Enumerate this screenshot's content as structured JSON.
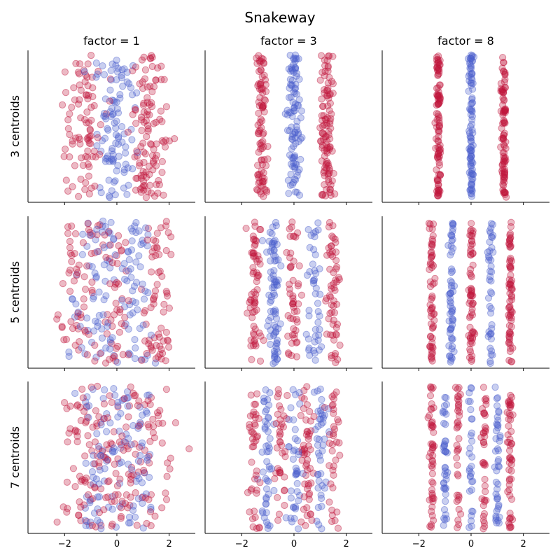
{
  "title": "Snakeway",
  "col_titles": [
    "factor = 1",
    "factor = 3",
    "factor = 8"
  ],
  "row_labels": [
    "3 centroids",
    "5 centroids",
    "7 centroids"
  ],
  "x_ticks": [
    "−2",
    "0",
    "2"
  ],
  "colors": {
    "class_a": "#c0163d",
    "class_b": "#4c5fcc"
  },
  "chart_data": {
    "type": "scatter",
    "title": "Snakeway",
    "layout": "3x3 grid of subplots",
    "shared_x": true,
    "xlim": [
      -3.4,
      3.0
    ],
    "ylim": [
      0,
      1
    ],
    "x_ticks": [
      -2,
      0,
      2
    ],
    "y_ticks": [],
    "point_alpha": 0.3,
    "point_colors": [
      "#c0163d",
      "#4c5fcc"
    ],
    "grid": false,
    "legend": "none",
    "factors": [
      1,
      3,
      8
    ],
    "centroids": [
      3,
      5,
      7
    ],
    "centroid_x": {
      "3": [
        -1.25,
        0,
        1.25
      ],
      "5": [
        -1.5,
        -0.75,
        0,
        0.75,
        1.5
      ],
      "7": [
        -1.5,
        -1.0,
        -0.5,
        0,
        0.5,
        1.0,
        1.5
      ]
    },
    "column_x_spread": [
      0.75,
      0.25,
      0.09
    ],
    "points_per_subplot": 300,
    "subplots": [
      {
        "row_label": "3 centroids",
        "col_title": "factor = 1"
      },
      {
        "row_label": "3 centroids",
        "col_title": "factor = 3"
      },
      {
        "row_label": "3 centroids",
        "col_title": "factor = 8"
      },
      {
        "row_label": "5 centroids",
        "col_title": "factor = 1"
      },
      {
        "row_label": "5 centroids",
        "col_title": "factor = 3"
      },
      {
        "row_label": "5 centroids",
        "col_title": "factor = 8"
      },
      {
        "row_label": "7 centroids",
        "col_title": "factor = 1"
      },
      {
        "row_label": "7 centroids",
        "col_title": "factor = 3"
      },
      {
        "row_label": "7 centroids",
        "col_title": "factor = 8"
      }
    ]
  }
}
